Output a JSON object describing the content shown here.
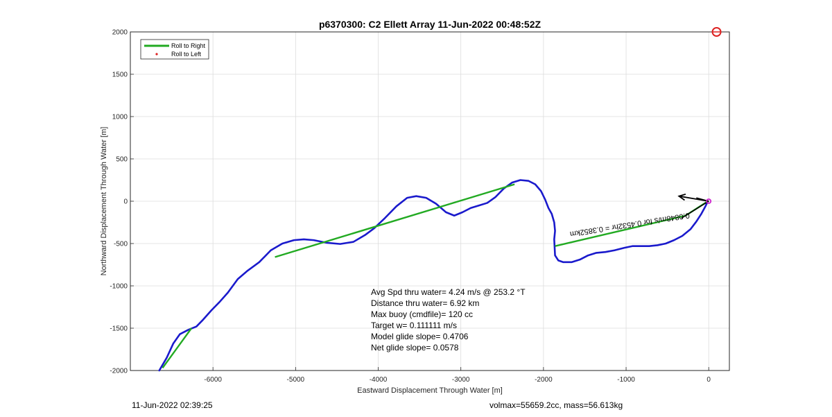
{
  "chart_data": {
    "type": "line",
    "title": "p6370300: C2 Ellett Array 11-Jun-2022 00:48:52Z",
    "xlabel": "Eastward Displacement Through Water [m]",
    "ylabel": "Northward Displacement Through Water [m]",
    "xlim": [
      -7000,
      250
    ],
    "ylim": [
      -2000,
      2000
    ],
    "xticks": [
      -6000,
      -5000,
      -4000,
      -3000,
      -2000,
      -1000,
      0
    ],
    "xtick_labels": [
      "-6000",
      "-5000",
      "-4000",
      "-3000",
      "-2000",
      "-1000",
      "0"
    ],
    "yticks": [
      -2000,
      -1500,
      -1000,
      -500,
      0,
      500,
      1000,
      1500,
      2000
    ],
    "ytick_labels": [
      "-2000",
      "-1500",
      "-1000",
      "-500",
      "0",
      "500",
      "1000",
      "1500",
      "2000"
    ],
    "grid": true,
    "legend_position": "top-left",
    "legend": [
      "Roll to Right",
      "Roll to Left"
    ],
    "series": [
      {
        "name": "Roll to Right",
        "color": "#22aa22",
        "segments": [
          [
            [
              -6610,
              -1970
            ],
            [
              -6260,
              -1500
            ]
          ],
          [
            [
              -5250,
              -660
            ],
            [
              -2350,
              200
            ]
          ],
          [
            [
              -1860,
              -530
            ],
            [
              -280,
              -170
            ]
          ],
          [
            [
              -280,
              -170
            ],
            [
              -10,
              0
            ]
          ]
        ]
      },
      {
        "name": "Roll to Left",
        "color": "#dd2222",
        "x": [],
        "y": []
      },
      {
        "name": "",
        "color": "#1a1acc",
        "x": [
          -6650,
          -6560,
          -6480,
          -6400,
          -6300,
          -6200,
          -6120,
          -6020,
          -5920,
          -5820,
          -5700,
          -5580,
          -5440,
          -5300,
          -5160,
          -5020,
          -4900,
          -4780,
          -4630,
          -4460,
          -4300,
          -4160,
          -4050,
          -3920,
          -3780,
          -3650,
          -3540,
          -3420,
          -3300,
          -3180,
          -3080,
          -2980,
          -2880,
          -2780,
          -2680,
          -2580,
          -2480,
          -2380,
          -2280,
          -2180,
          -2100,
          -2030,
          -1980,
          -1940,
          -1900,
          -1870,
          -1860,
          -1870,
          -1860,
          -1820,
          -1760,
          -1660,
          -1560,
          -1460,
          -1360,
          -1250,
          -1140,
          -1020,
          -920,
          -820,
          -720,
          -620,
          -520,
          -420,
          -320,
          -220,
          -150,
          -90,
          -40,
          -10
        ],
        "y": [
          -2000,
          -1850,
          -1680,
          -1570,
          -1520,
          -1480,
          -1400,
          -1290,
          -1190,
          -1080,
          -920,
          -820,
          -720,
          -580,
          -500,
          -460,
          -450,
          -460,
          -490,
          -505,
          -480,
          -400,
          -320,
          -200,
          -60,
          40,
          60,
          40,
          -30,
          -130,
          -170,
          -130,
          -80,
          -50,
          -20,
          50,
          150,
          220,
          250,
          240,
          200,
          120,
          20,
          -80,
          -150,
          -250,
          -350,
          -450,
          -640,
          -700,
          -720,
          -720,
          -690,
          -640,
          -610,
          -600,
          -580,
          -550,
          -530,
          -530,
          -530,
          -520,
          -500,
          -460,
          -410,
          -330,
          -240,
          -150,
          -60,
          0
        ]
      }
    ],
    "annotations": [
      "Avg Spd thru water=  4.24 m/s @ 253.2 °T",
      "Distance thru water=  6.92 km",
      "Max buoy (cmdfile)= 120 cc",
      "Target w= 0.111111 m/s",
      "Model glide slope= 0.4706",
      "Net glide slope= 0.0578"
    ],
    "rotated_text": "0.0848m/s for 0.4532hr = 0.3852km",
    "current_arrow": {
      "color": "#000000",
      "from": [
        0,
        0
      ],
      "to": [
        -360,
        60
      ],
      "extra_lines": [
        [
          [
            0,
            0
          ],
          [
            -330,
            -200
          ]
        ],
        [
          [
            0,
            0
          ],
          [
            -150,
            40
          ]
        ]
      ]
    },
    "end_marker_color": "#cc22cc",
    "target_marker": {
      "x": 95,
      "y": 2000,
      "color": "#dd2222"
    }
  },
  "footer": {
    "left": "11-Jun-2022 02:39:25",
    "right": "volmax=55659.2cc, mass=56.613kg"
  }
}
